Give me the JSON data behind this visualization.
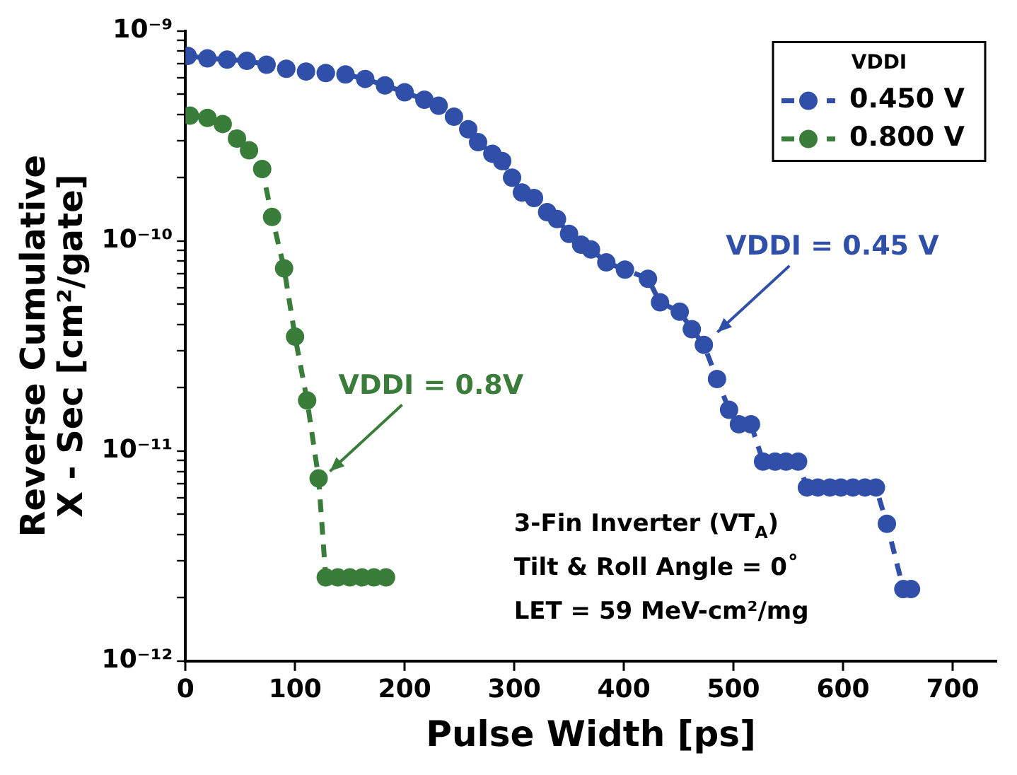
{
  "chart_data": {
    "type": "line",
    "xlabel": "Pulse Width [ps]",
    "ylabel": "Reverse Cumulative\nX - Sec [cm²/gate]",
    "legend_title": "VDDI",
    "legend": "top right",
    "marker": "circle",
    "line_style": "dashed",
    "grid": false,
    "log": "y",
    "xlim": [
      0,
      740
    ],
    "xticks": [
      0,
      100,
      200,
      300,
      400,
      500,
      600,
      700
    ],
    "ylim": [
      1e-12,
      1e-09
    ],
    "yticks": [
      {
        "value": 1e-12,
        "label": "10⁻¹²"
      },
      {
        "value": 2e-12,
        "label": null
      },
      {
        "value": 3e-12,
        "label": null
      },
      {
        "value": 4e-12,
        "label": null
      },
      {
        "value": 5e-12,
        "label": null
      },
      {
        "value": 6e-12,
        "label": null
      },
      {
        "value": 7e-12,
        "label": null
      },
      {
        "value": 8e-12,
        "label": null
      },
      {
        "value": 9e-12,
        "label": null
      },
      {
        "value": 1e-11,
        "label": "10⁻¹¹"
      },
      {
        "value": 2e-11,
        "label": null
      },
      {
        "value": 3e-11,
        "label": null
      },
      {
        "value": 4e-11,
        "label": null
      },
      {
        "value": 5e-11,
        "label": null
      },
      {
        "value": 6e-11,
        "label": null
      },
      {
        "value": 7e-11,
        "label": null
      },
      {
        "value": 8e-11,
        "label": null
      },
      {
        "value": 9e-11,
        "label": null
      },
      {
        "value": 1e-10,
        "label": "10⁻¹⁰"
      },
      {
        "value": 2e-10,
        "label": null
      },
      {
        "value": 3e-10,
        "label": null
      },
      {
        "value": 4e-10,
        "label": null
      },
      {
        "value": 5e-10,
        "label": null
      },
      {
        "value": 6e-10,
        "label": null
      },
      {
        "value": 7e-10,
        "label": null
      },
      {
        "value": 8e-10,
        "label": null
      },
      {
        "value": 9e-10,
        "label": null
      },
      {
        "value": 1e-09,
        "label": "10⁻⁹"
      }
    ],
    "series": [
      {
        "name": "0.450 V",
        "color": "#2f4fa8",
        "x": [
          2,
          20,
          38,
          56,
          74,
          92,
          110,
          128,
          146,
          164,
          182,
          200,
          218,
          231,
          245,
          258,
          267,
          280,
          289,
          298,
          307,
          318,
          330,
          339,
          350,
          361,
          370,
          384,
          401,
          422,
          433,
          451,
          462,
          473,
          485,
          496,
          505,
          516,
          527,
          538,
          548,
          559,
          567,
          577,
          588,
          598,
          609,
          620,
          630,
          640,
          655,
          662
        ],
        "values": [
          7.6e-10,
          7.4e-10,
          7.3e-10,
          7.2e-10,
          6.9e-10,
          6.6e-10,
          6.4e-10,
          6.3e-10,
          6.2e-10,
          5.9e-10,
          5.5e-10,
          5.1e-10,
          4.7e-10,
          4.4e-10,
          3.9e-10,
          3.4e-10,
          2.95e-10,
          2.6e-10,
          2.4e-10,
          2e-10,
          1.7e-10,
          1.6e-10,
          1.37e-10,
          1.27e-10,
          1.08e-10,
          9.6e-11,
          9.1e-11,
          7.9e-11,
          7.3e-11,
          6.6e-11,
          5.1e-11,
          4.6e-11,
          3.8e-11,
          3.2e-11,
          2.2e-11,
          1.57e-11,
          1.34e-11,
          1.34e-11,
          8.9e-12,
          8.9e-12,
          8.9e-12,
          8.9e-12,
          6.7e-12,
          6.7e-12,
          6.7e-12,
          6.7e-12,
          6.7e-12,
          6.7e-12,
          6.7e-12,
          4.5e-12,
          2.2e-12,
          2.2e-12
        ]
      },
      {
        "name": "0.800 V",
        "color": "#3a7d3a",
        "x": [
          4,
          20,
          34,
          47,
          58,
          70,
          79,
          90,
          100,
          111,
          121.5,
          128,
          139,
          150,
          161,
          172,
          183
        ],
        "values": [
          3.95e-10,
          3.85e-10,
          3.6e-10,
          3.07e-10,
          2.7e-10,
          2.2e-10,
          1.3e-10,
          7.4e-11,
          3.5e-11,
          1.74e-11,
          7.4e-12,
          2.5e-12,
          2.5e-12,
          2.5e-12,
          2.5e-12,
          2.5e-12,
          2.5e-12
        ]
      }
    ],
    "annotations": [
      {
        "text": "VDDI = 0.45 V",
        "x": 475,
        "y": 3.4e-11
      },
      {
        "text": "VDDI = 0.8V",
        "x": 121.5,
        "y": 7.4e-12
      },
      "3-Fin Inverter (VT$_{A}$)",
      "Tilt & Roll Angle = 0˚",
      "LET = 59 MeV-cm²/mg"
    ]
  }
}
